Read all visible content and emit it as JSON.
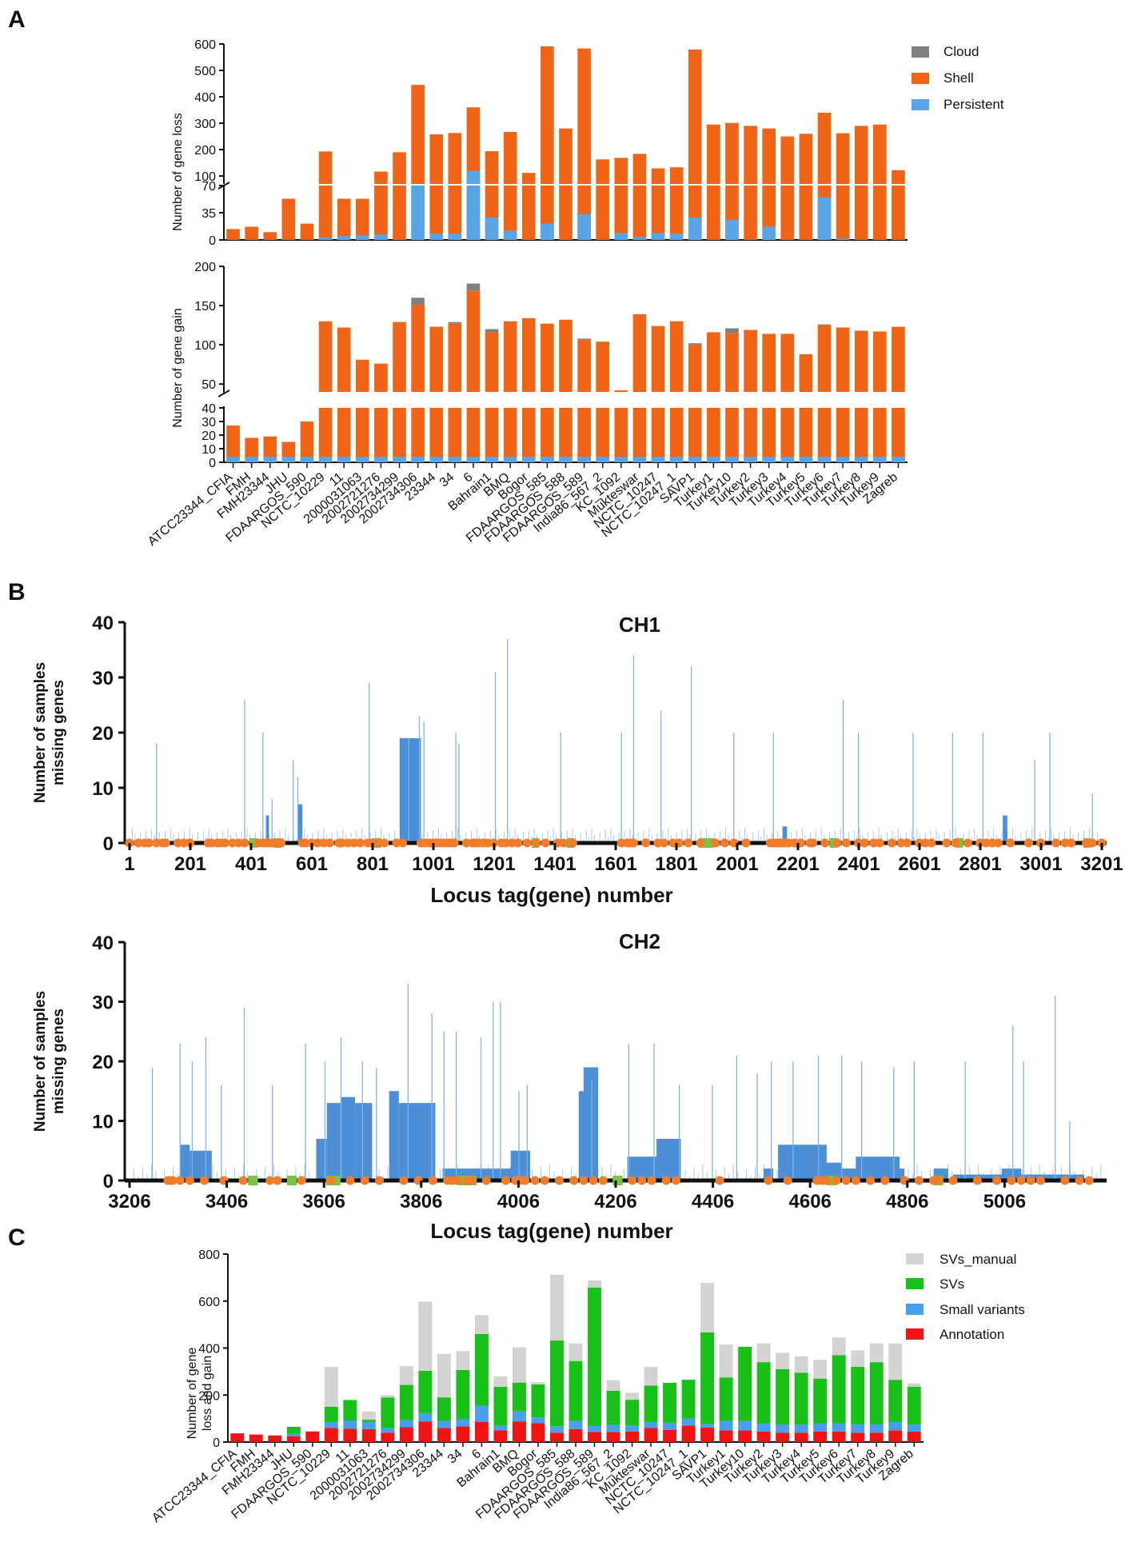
{
  "strains": [
    "ATCC23344_CFIA",
    "FMH",
    "FMH23344",
    "JHU",
    "FDAARGOS_590",
    "NCTC_10229",
    "11",
    "2000031063",
    "2002721276",
    "2002734299",
    "2002734306",
    "23344",
    "34",
    "6",
    "Bahrain1",
    "BMQ",
    "Bogor",
    "FDAARGOS_585",
    "FDAARGOS_588",
    "FDAARGOS_589",
    "India86_567_2",
    "KC_1092",
    "Mukteswar",
    "NCTC_10247",
    "NCTC_10247_1",
    "SAVP1",
    "Turkey1",
    "Turkey10",
    "Turkey2",
    "Turkey3",
    "Turkey4",
    "Turkey5",
    "Turkey6",
    "Turkey7",
    "Turkey8",
    "Turkey9",
    "Zagreb"
  ],
  "panel_labels": {
    "a": "A",
    "b": "B",
    "c": "C"
  },
  "colors": {
    "cloud": "#808080",
    "shell": "#f06418",
    "persistent": "#5aa5e6",
    "b_bar": "#4d8fd6",
    "b_orange": "#ef7d2c",
    "b_green": "#7cc244",
    "sv_manual": "#d3d3d3",
    "svs": "#18c018",
    "small_var": "#4a9ef0",
    "annotation": "#f01414"
  },
  "chart_data": [
    {
      "id": "A-loss",
      "type": "bar",
      "stacked": true,
      "ylabel": "Number of gene loss",
      "axis_break": {
        "lower_range": [
          0,
          70
        ],
        "upper_range": [
          70,
          600
        ]
      },
      "lower_ticks": [
        0,
        35,
        70
      ],
      "upper_ticks": [
        100,
        200,
        300,
        400,
        500,
        600
      ],
      "legend": [
        "Cloud",
        "Shell",
        "Persistent"
      ],
      "series": [
        {
          "name": "Cloud",
          "values": [
            0,
            0,
            0,
            0,
            0,
            0,
            0,
            0,
            0,
            0,
            0,
            0,
            0,
            0,
            0,
            0,
            0,
            0,
            0,
            0,
            0,
            0,
            0,
            0,
            0,
            0,
            0,
            0,
            0,
            0,
            0,
            0,
            0,
            0,
            0,
            0,
            0
          ]
        },
        {
          "name": "Shell",
          "values": [
            14,
            17,
            10,
            53,
            21,
            190,
            48,
            47,
            110,
            190,
            375,
            250,
            255,
            240,
            165,
            255,
            112,
            570,
            280,
            550,
            163,
            160,
            180,
            120,
            125,
            550,
            295,
            275,
            290,
            263,
            250,
            260,
            285,
            260,
            290,
            295,
            122
          ]
        },
        {
          "name": "Persistent",
          "values": [
            0,
            0,
            0,
            0,
            0,
            3,
            5,
            6,
            7,
            0,
            70,
            8,
            8,
            120,
            29,
            12,
            0,
            21,
            0,
            33,
            0,
            9,
            4,
            9,
            8,
            29,
            0,
            26,
            0,
            17,
            0,
            0,
            55,
            2,
            0,
            0,
            0
          ]
        }
      ]
    },
    {
      "id": "A-gain",
      "type": "bar",
      "stacked": true,
      "ylabel": "Number of gene gain",
      "axis_break": {
        "lower_range": [
          0,
          40
        ],
        "upper_range": [
          40,
          200
        ]
      },
      "lower_ticks": [
        0,
        10,
        20,
        30,
        40
      ],
      "upper_ticks": [
        50,
        100,
        150,
        200
      ],
      "series": [
        {
          "name": "Persistent",
          "values": [
            4,
            4,
            4,
            4,
            4,
            4,
            4,
            4,
            4,
            4,
            4,
            4,
            4,
            4,
            4,
            4,
            4,
            4,
            4,
            4,
            4,
            4,
            4,
            4,
            4,
            4,
            4,
            4,
            4,
            4,
            4,
            4,
            4,
            4,
            4,
            4,
            4
          ]
        },
        {
          "name": "Shell",
          "values": [
            23,
            14,
            15,
            11,
            26,
            126,
            118,
            77,
            72,
            125,
            147,
            119,
            123,
            165,
            112,
            126,
            130,
            123,
            128,
            103,
            100,
            38,
            135,
            120,
            126,
            96,
            112,
            111,
            115,
            110,
            110,
            84,
            121,
            118,
            114,
            113,
            119
          ]
        },
        {
          "name": "Cloud",
          "values": [
            0,
            0,
            0,
            0,
            0,
            0,
            0,
            0,
            0,
            0,
            9,
            0,
            2,
            9,
            4,
            0,
            0,
            0,
            0,
            1,
            0,
            0,
            0,
            0,
            0,
            2,
            0,
            6,
            0,
            0,
            0,
            0,
            1,
            0,
            0,
            0,
            0
          ]
        }
      ]
    },
    {
      "id": "B-CH1",
      "type": "bar",
      "title": "CH1",
      "xlabel": "Locus tag(gene) number",
      "ylabel": "Number of samples missing genes",
      "xlim": [
        1,
        3201
      ],
      "ylim": [
        0,
        40
      ],
      "xticks": [
        "1",
        "201",
        "401",
        "601",
        "801",
        "1001",
        "1201",
        "1401",
        "1601",
        "1801",
        "2001",
        "2201",
        "2401",
        "2601",
        "2801",
        "3001",
        "3201"
      ],
      "yticks": [
        "0",
        "10",
        "20",
        "30",
        "40"
      ],
      "spikes": [
        [
          90,
          18
        ],
        [
          380,
          26
        ],
        [
          440,
          20
        ],
        [
          470,
          8
        ],
        [
          540,
          15
        ],
        [
          555,
          12
        ],
        [
          790,
          29
        ],
        [
          920,
          19
        ],
        [
          955,
          23
        ],
        [
          970,
          22
        ],
        [
          1075,
          20
        ],
        [
          1085,
          18
        ],
        [
          1205,
          31
        ],
        [
          1245,
          37
        ],
        [
          1420,
          20
        ],
        [
          1620,
          20
        ],
        [
          1660,
          34
        ],
        [
          1750,
          24
        ],
        [
          1850,
          32
        ],
        [
          1990,
          20
        ],
        [
          2120,
          20
        ],
        [
          2350,
          26
        ],
        [
          2400,
          20
        ],
        [
          2580,
          20
        ],
        [
          2710,
          20
        ],
        [
          2810,
          20
        ],
        [
          2980,
          15
        ],
        [
          3030,
          20
        ],
        [
          3170,
          9
        ]
      ],
      "blocks": [
        [
          890,
          960,
          19
        ],
        [
          2150,
          2165,
          3
        ],
        [
          2875,
          2890,
          5
        ],
        [
          555,
          570,
          7
        ],
        [
          450,
          460,
          5
        ]
      ],
      "orange_dots": [
        1,
        30,
        50,
        65,
        90,
        110,
        120,
        160,
        180,
        200,
        260,
        270,
        290,
        300,
        315,
        340,
        360,
        380,
        425,
        440,
        450,
        460,
        470,
        480,
        490,
        500,
        570,
        580,
        600,
        620,
        640,
        660,
        690,
        700,
        720,
        740,
        760,
        785,
        800,
        820,
        840,
        880,
        900,
        960,
        975,
        990,
        1000,
        1010,
        1020,
        1035,
        1050,
        1060,
        1070,
        1110,
        1130,
        1140,
        1150,
        1165,
        1180,
        1200,
        1225,
        1240,
        1260,
        1280,
        1310,
        1340,
        1370,
        1410,
        1430,
        1460,
        1620,
        1640,
        1650,
        1660,
        1700,
        1740,
        1760,
        1790,
        1810,
        1840,
        1880,
        1930,
        1960,
        1990,
        2030,
        2110,
        2120,
        2130,
        2140,
        2150,
        2160,
        2170,
        2190,
        2210,
        2240,
        2250,
        2290,
        2330,
        2360,
        2400,
        2420,
        2450,
        2470,
        2510,
        2540,
        2560,
        2600,
        2620,
        2640,
        2690,
        2720,
        2760,
        2800,
        2820,
        2840,
        2860,
        2900,
        2960,
        3000,
        3050,
        3080,
        3100,
        3150,
        3170,
        3201
      ],
      "green_segs": [
        [
          395,
          420
        ],
        [
          475,
          500
        ],
        [
          800,
          830
        ],
        [
          1325,
          1350
        ],
        [
          1440,
          1465
        ],
        [
          1875,
          1925
        ],
        [
          2305,
          2330
        ],
        [
          2720,
          2745
        ],
        [
          3140,
          3165
        ]
      ]
    },
    {
      "id": "B-CH2",
      "type": "bar",
      "title": "CH2",
      "xlabel": "Locus tag(gene) number",
      "ylabel": "Number of samples missing genes",
      "xlim": [
        3206,
        5206
      ],
      "ylim": [
        0,
        40
      ],
      "xticks": [
        "3206",
        "3406",
        "3606",
        "3806",
        "4006",
        "4206",
        "4406",
        "4606",
        "4806",
        "5006"
      ],
      "yticks": [
        "0",
        "10",
        "20",
        "30",
        "40"
      ],
      "spikes": [
        [
          3253,
          19
        ],
        [
          3310,
          23
        ],
        [
          3335,
          20
        ],
        [
          3363,
          24
        ],
        [
          3395,
          16
        ],
        [
          3442,
          29
        ],
        [
          3500,
          16
        ],
        [
          3568,
          23
        ],
        [
          3608,
          20
        ],
        [
          3641,
          24
        ],
        [
          3685,
          20
        ],
        [
          3714,
          19
        ],
        [
          3779,
          33
        ],
        [
          3828,
          28
        ],
        [
          3853,
          25
        ],
        [
          3878,
          25
        ],
        [
          3929,
          24
        ],
        [
          3954,
          30
        ],
        [
          3969,
          30
        ],
        [
          4007,
          15
        ],
        [
          4024,
          16
        ],
        [
          4157,
          17
        ],
        [
          4233,
          23
        ],
        [
          4285,
          23
        ],
        [
          4337,
          16
        ],
        [
          4405,
          16
        ],
        [
          4455,
          21
        ],
        [
          4497,
          18
        ],
        [
          4526,
          20
        ],
        [
          4571,
          20
        ],
        [
          4623,
          21
        ],
        [
          4671,
          21
        ],
        [
          4712,
          20
        ],
        [
          4778,
          19
        ],
        [
          4820,
          20
        ],
        [
          4925,
          20
        ],
        [
          5023,
          26
        ],
        [
          5045,
          20
        ],
        [
          5110,
          31
        ],
        [
          5140,
          10
        ]
      ],
      "blocks": [
        [
          3310,
          3330,
          6
        ],
        [
          3330,
          3375,
          5
        ],
        [
          3590,
          3612,
          7
        ],
        [
          3612,
          3640,
          13
        ],
        [
          3640,
          3670,
          14
        ],
        [
          3670,
          3705,
          13
        ],
        [
          3740,
          3760,
          15
        ],
        [
          3760,
          3835,
          13
        ],
        [
          3850,
          4000,
          2
        ],
        [
          3990,
          4030,
          5
        ],
        [
          4140,
          4170,
          19
        ],
        [
          4130,
          4150,
          15
        ],
        [
          4230,
          4310,
          4
        ],
        [
          4290,
          4340,
          7
        ],
        [
          4510,
          4530,
          2
        ],
        [
          4540,
          4640,
          6
        ],
        [
          4630,
          4670,
          3
        ],
        [
          4660,
          4700,
          2
        ],
        [
          4700,
          4790,
          4
        ],
        [
          4770,
          4800,
          2
        ],
        [
          4860,
          4890,
          2
        ],
        [
          4900,
          5010,
          1
        ],
        [
          5000,
          5040,
          2
        ],
        [
          5040,
          5170,
          1
        ]
      ],
      "orange_dots": [
        3285,
        3290,
        3295,
        3310,
        3330,
        3360,
        3400,
        3440,
        3495,
        3510,
        3560,
        3620,
        3660,
        3690,
        3720,
        3770,
        3800,
        3830,
        3860,
        3870,
        3880,
        3900,
        3910,
        3940,
        3980,
        4000,
        4010,
        4020,
        4040,
        4060,
        4090,
        4120,
        4140,
        4160,
        4180,
        4240,
        4260,
        4280,
        4310,
        4330,
        4420,
        4520,
        4560,
        4620,
        4630,
        4640,
        4660,
        4680,
        4700,
        4730,
        4760,
        4800,
        4830,
        4860,
        4870,
        4900,
        4950,
        4990,
        5020,
        5040,
        5060,
        5080,
        5130,
        5160,
        5180
      ],
      "green_segs": [
        [
          3450,
          3470
        ],
        [
          3530,
          3550
        ],
        [
          3610,
          3640
        ],
        [
          3880,
          3920
        ],
        [
          4200,
          4220
        ],
        [
          4640,
          4660
        ],
        [
          4860,
          4880
        ]
      ]
    },
    {
      "id": "C",
      "type": "bar",
      "stacked": true,
      "ylabel": "Number of gene loss and gain",
      "ylim": [
        0,
        800
      ],
      "yticks": [
        "0",
        "200",
        "400",
        "600",
        "800"
      ],
      "legend": [
        "SVs_manual",
        "SVs",
        "Small variants",
        "Annotation"
      ],
      "series": [
        {
          "name": "Annotation",
          "values": [
            37,
            32,
            28,
            25,
            45,
            60,
            57,
            55,
            40,
            63,
            88,
            60,
            67,
            85,
            50,
            88,
            80,
            40,
            55,
            43,
            43,
            45,
            60,
            52,
            70,
            62,
            50,
            50,
            45,
            40,
            40,
            45,
            45,
            40,
            40,
            50,
            45
          ]
        },
        {
          "name": "Small variants",
          "values": [
            0,
            0,
            0,
            10,
            0,
            25,
            35,
            30,
            20,
            30,
            35,
            30,
            30,
            70,
            20,
            45,
            25,
            27,
            35,
            25,
            30,
            25,
            25,
            30,
            30,
            15,
            40,
            40,
            35,
            35,
            35,
            35,
            35,
            35,
            35,
            35,
            30
          ]
        },
        {
          "name": "SVs",
          "values": [
            0,
            0,
            0,
            30,
            0,
            65,
            87,
            10,
            130,
            150,
            180,
            100,
            210,
            305,
            165,
            120,
            140,
            365,
            255,
            590,
            145,
            110,
            155,
            170,
            165,
            390,
            185,
            315,
            260,
            235,
            220,
            190,
            290,
            245,
            265,
            180,
            160
          ]
        },
        {
          "name": "SVs_manual",
          "values": [
            0,
            0,
            0,
            0,
            0,
            170,
            0,
            35,
            10,
            80,
            295,
            185,
            80,
            80,
            45,
            150,
            10,
            280,
            75,
            30,
            45,
            30,
            80,
            0,
            0,
            210,
            140,
            0,
            80,
            70,
            70,
            80,
            75,
            70,
            80,
            155,
            15
          ]
        }
      ]
    }
  ]
}
